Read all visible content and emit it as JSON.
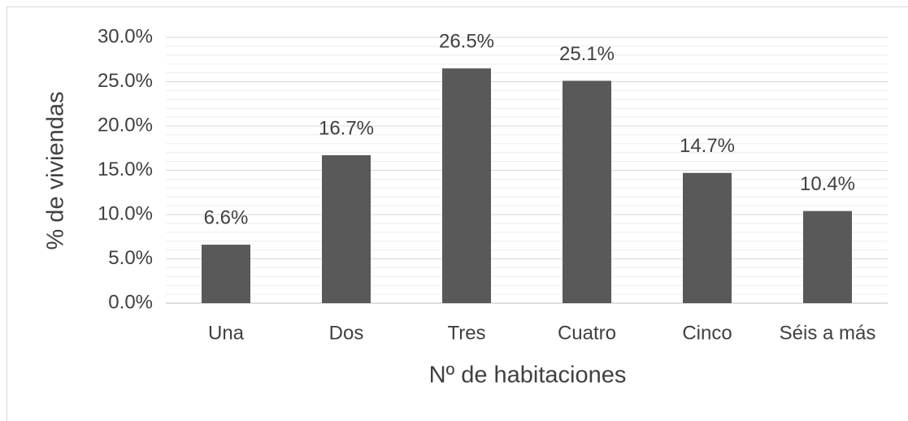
{
  "chart_data": {
    "type": "bar",
    "x_label": "Nº de habitaciones",
    "y_label": "% de viviendas",
    "categories": [
      "Una",
      "Dos",
      "Tres",
      "Cuatro",
      "Cinco",
      "Séis a más"
    ],
    "values": [
      6.6,
      16.7,
      26.5,
      25.1,
      14.7,
      10.4
    ],
    "value_labels": [
      "6.6%",
      "16.7%",
      "26.5%",
      "25.1%",
      "14.7%",
      "10.4%"
    ],
    "color": "#595959",
    "ylim": [
      0,
      30
    ],
    "yticks": [
      {
        "value": 0,
        "label": "0.0%"
      },
      {
        "value": 5,
        "label": "5.0%"
      },
      {
        "value": 10,
        "label": "10.0%"
      },
      {
        "value": 15,
        "label": "15.0%"
      },
      {
        "value": 20,
        "label": "20.0%"
      },
      {
        "value": 25,
        "label": "25.0%"
      },
      {
        "value": 30,
        "label": "30.0%"
      }
    ],
    "minor_yticks": [
      1,
      2,
      3,
      4,
      6,
      7,
      8,
      9,
      11,
      12,
      13,
      14,
      16,
      17,
      18,
      19,
      21,
      22,
      23,
      24,
      26,
      27,
      28,
      29
    ],
    "grid": true
  }
}
